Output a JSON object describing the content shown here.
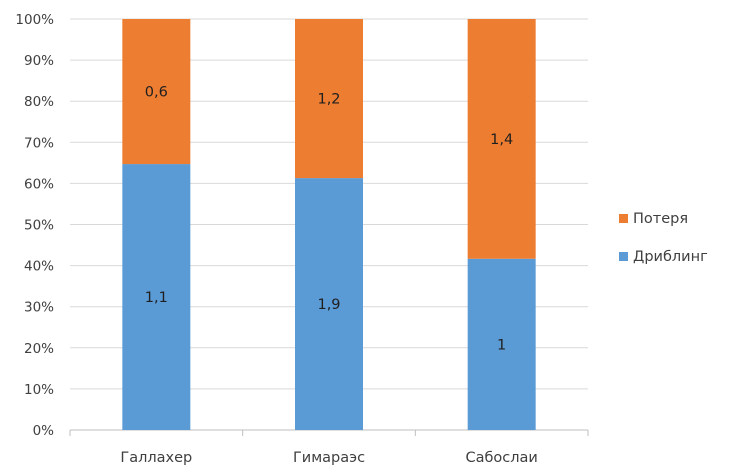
{
  "chart_data": {
    "type": "bar",
    "stacked": "percent",
    "categories": [
      "Галлахер",
      "Гимараэс",
      "Сабослаи"
    ],
    "series": [
      {
        "name": "Дриблинг",
        "values": [
          1.1,
          1.9,
          1
        ],
        "labels": [
          "1,1",
          "1,9",
          "1"
        ],
        "color": "#5b9bd5"
      },
      {
        "name": "Потеря",
        "values": [
          0.6,
          1.2,
          1.4
        ],
        "labels": [
          "0,6",
          "1,2",
          "1,4"
        ],
        "color": "#ed7d31"
      }
    ],
    "y_ticks": [
      "0%",
      "10%",
      "20%",
      "30%",
      "40%",
      "50%",
      "60%",
      "70%",
      "80%",
      "90%",
      "100%"
    ],
    "ylim": [
      0,
      100
    ],
    "grid": true,
    "legend_position": "right",
    "legend": [
      "Потеря",
      "Дриблинг"
    ]
  }
}
